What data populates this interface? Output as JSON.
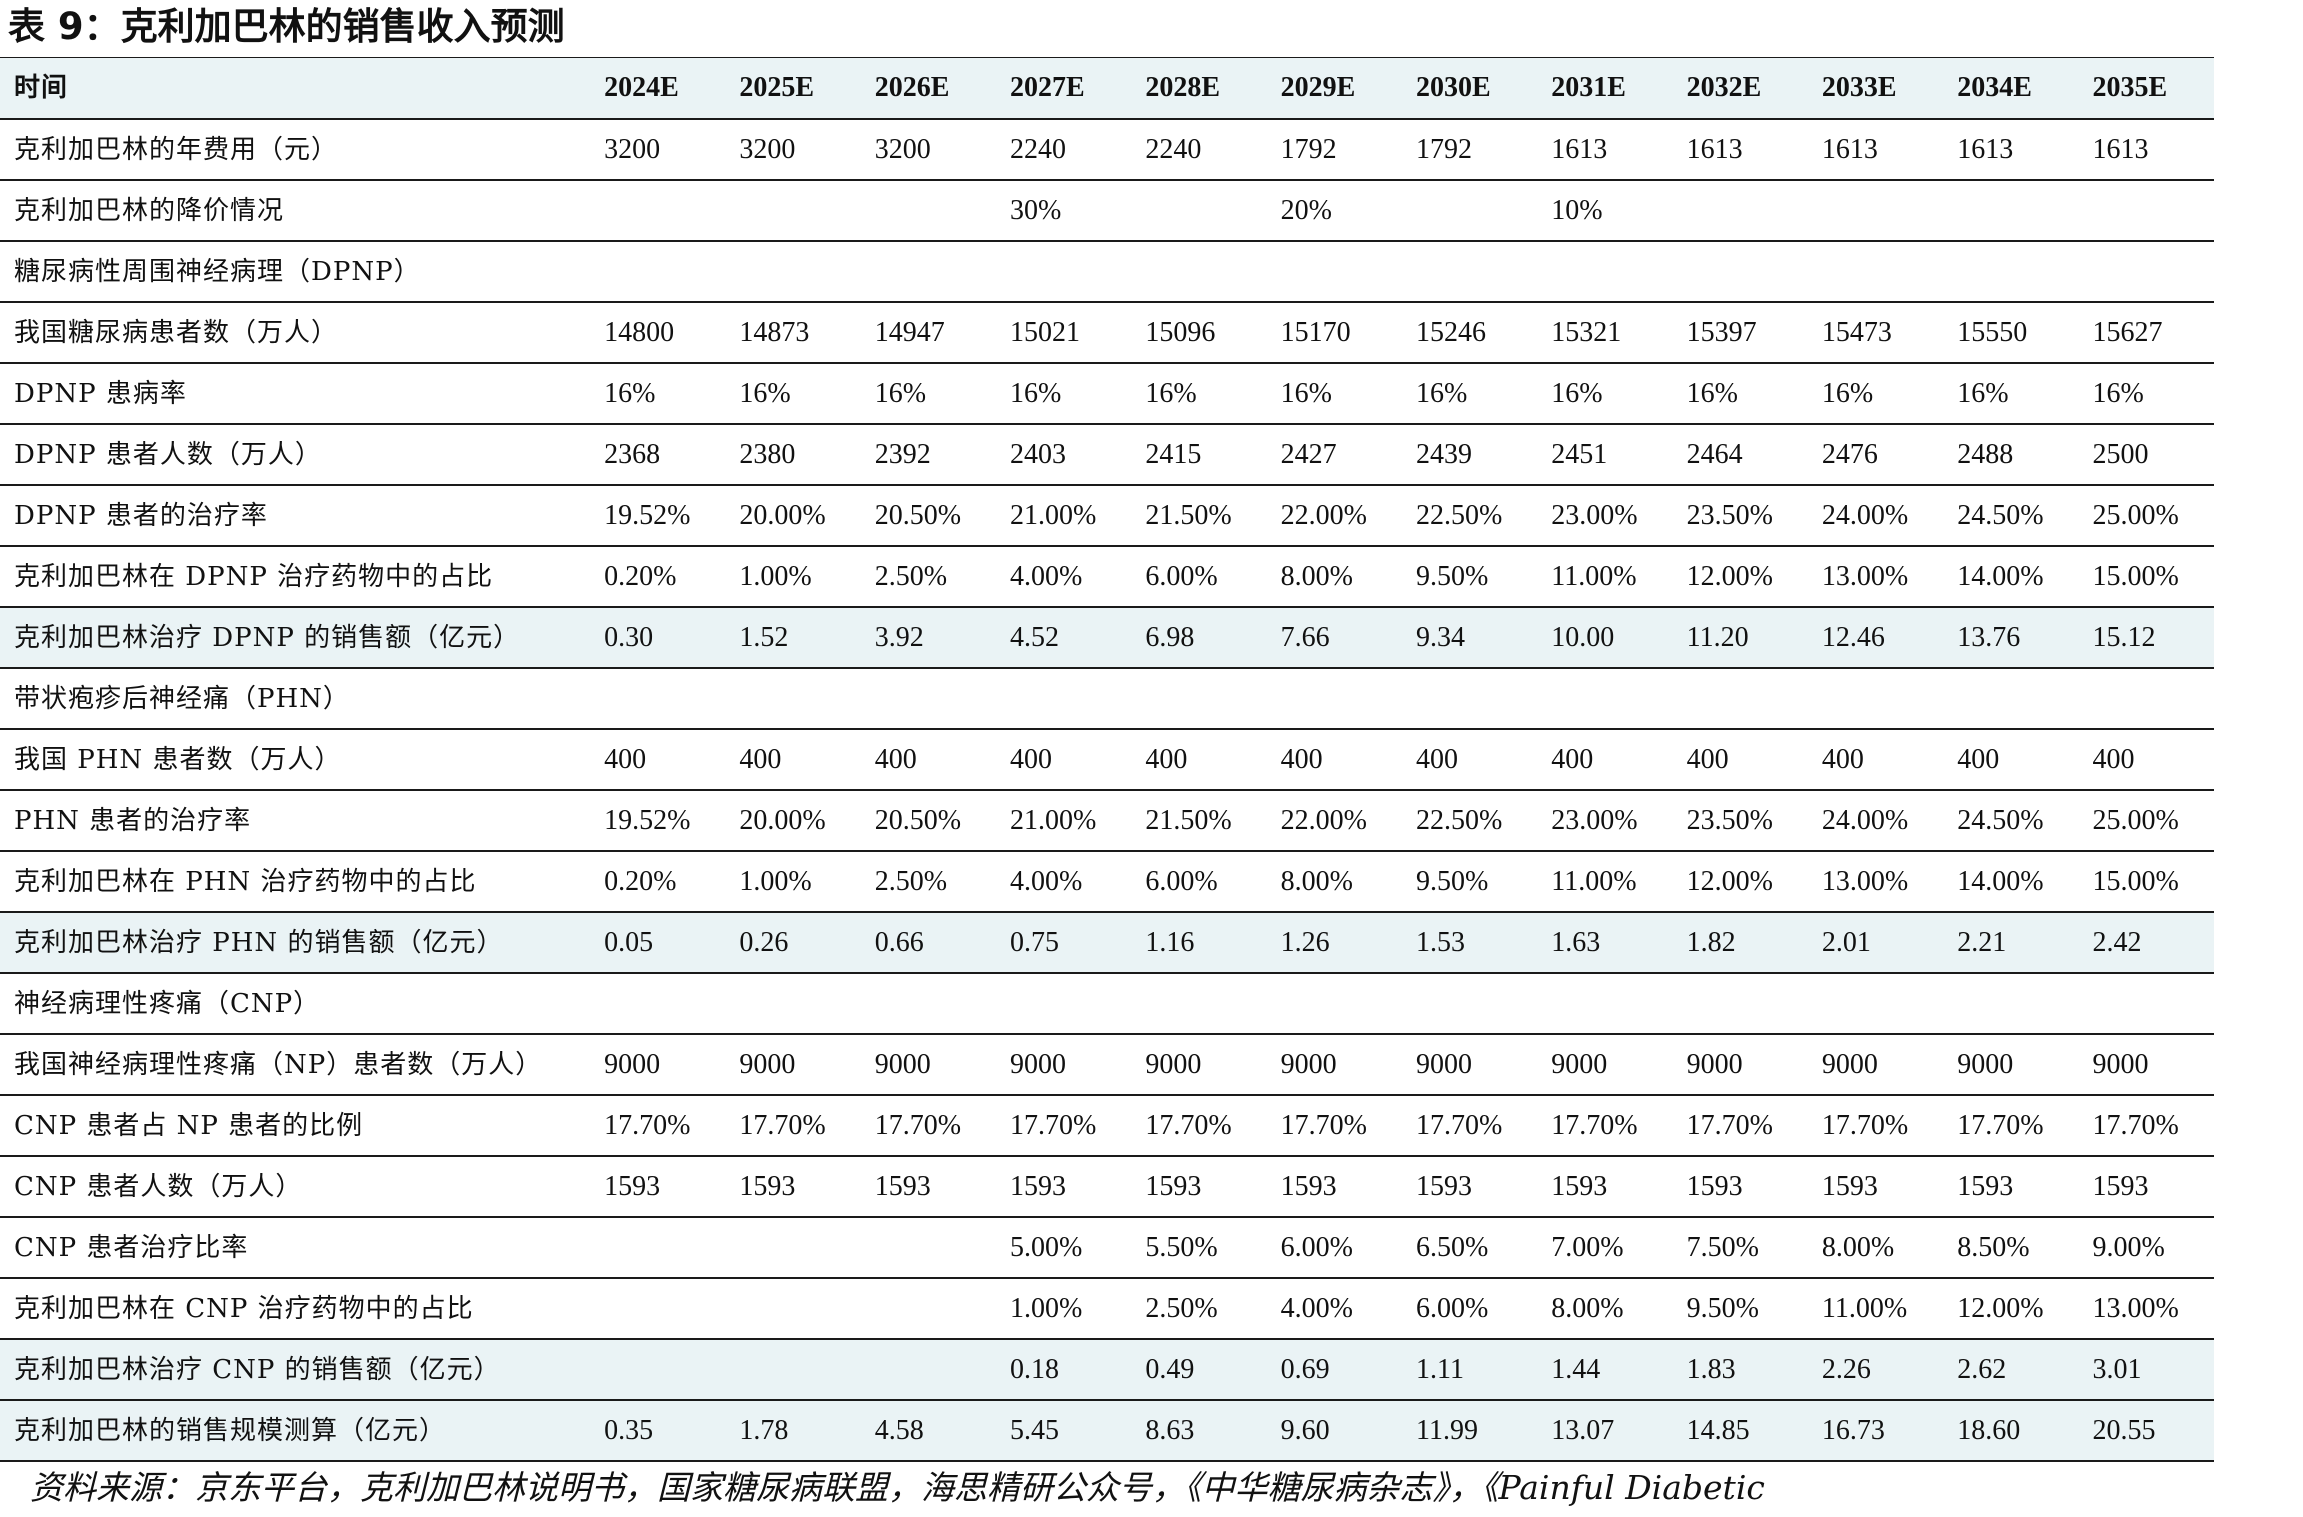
{
  "title": "表 9：克利加巴林的销售收入预测",
  "table": {
    "header": {
      "label": "时间",
      "years": [
        "2024E",
        "2025E",
        "2026E",
        "2027E",
        "2028E",
        "2029E",
        "2030E",
        "2031E",
        "2032E",
        "2033E",
        "2034E",
        "2035E"
      ]
    },
    "rows": [
      {
        "label": "克利加巴林的年费用（元）",
        "highlight": false,
        "values": [
          "3200",
          "3200",
          "3200",
          "2240",
          "2240",
          "1792",
          "1792",
          "1613",
          "1613",
          "1613",
          "1613",
          "1613"
        ]
      },
      {
        "label": "克利加巴林的降价情况",
        "highlight": false,
        "values": [
          "",
          "",
          "",
          "30%",
          "",
          "20%",
          "",
          "10%",
          "",
          "",
          "",
          ""
        ]
      },
      {
        "label": "糖尿病性周围神经病理（DPNP）",
        "highlight": false,
        "values": [
          "",
          "",
          "",
          "",
          "",
          "",
          "",
          "",
          "",
          "",
          "",
          ""
        ]
      },
      {
        "label": "我国糖尿病患者数（万人）",
        "highlight": false,
        "values": [
          "14800",
          "14873",
          "14947",
          "15021",
          "15096",
          "15170",
          "15246",
          "15321",
          "15397",
          "15473",
          "15550",
          "15627"
        ]
      },
      {
        "label": "DPNP 患病率",
        "highlight": false,
        "values": [
          "16%",
          "16%",
          "16%",
          "16%",
          "16%",
          "16%",
          "16%",
          "16%",
          "16%",
          "16%",
          "16%",
          "16%"
        ]
      },
      {
        "label": "DPNP 患者人数（万人）",
        "highlight": false,
        "values": [
          "2368",
          "2380",
          "2392",
          "2403",
          "2415",
          "2427",
          "2439",
          "2451",
          "2464",
          "2476",
          "2488",
          "2500"
        ]
      },
      {
        "label": "DPNP 患者的治疗率",
        "highlight": false,
        "values": [
          "19.52%",
          "20.00%",
          "20.50%",
          "21.00%",
          "21.50%",
          "22.00%",
          "22.50%",
          "23.00%",
          "23.50%",
          "24.00%",
          "24.50%",
          "25.00%"
        ]
      },
      {
        "label": "克利加巴林在 DPNP 治疗药物中的占比",
        "highlight": false,
        "values": [
          "0.20%",
          "1.00%",
          "2.50%",
          "4.00%",
          "6.00%",
          "8.00%",
          "9.50%",
          "11.00%",
          "12.00%",
          "13.00%",
          "14.00%",
          "15.00%"
        ]
      },
      {
        "label": "克利加巴林治疗 DPNP 的销售额（亿元）",
        "highlight": true,
        "values": [
          "0.30",
          "1.52",
          "3.92",
          "4.52",
          "6.98",
          "7.66",
          "9.34",
          "10.00",
          "11.20",
          "12.46",
          "13.76",
          "15.12"
        ]
      },
      {
        "label": "带状疱疹后神经痛（PHN）",
        "highlight": false,
        "values": [
          "",
          "",
          "",
          "",
          "",
          "",
          "",
          "",
          "",
          "",
          "",
          ""
        ]
      },
      {
        "label": "我国 PHN 患者数（万人）",
        "highlight": false,
        "values": [
          "400",
          "400",
          "400",
          "400",
          "400",
          "400",
          "400",
          "400",
          "400",
          "400",
          "400",
          "400"
        ]
      },
      {
        "label": "PHN 患者的治疗率",
        "highlight": false,
        "values": [
          "19.52%",
          "20.00%",
          "20.50%",
          "21.00%",
          "21.50%",
          "22.00%",
          "22.50%",
          "23.00%",
          "23.50%",
          "24.00%",
          "24.50%",
          "25.00%"
        ]
      },
      {
        "label": "克利加巴林在 PHN 治疗药物中的占比",
        "highlight": false,
        "values": [
          "0.20%",
          "1.00%",
          "2.50%",
          "4.00%",
          "6.00%",
          "8.00%",
          "9.50%",
          "11.00%",
          "12.00%",
          "13.00%",
          "14.00%",
          "15.00%"
        ]
      },
      {
        "label": "克利加巴林治疗 PHN 的销售额（亿元）",
        "highlight": true,
        "values": [
          "0.05",
          "0.26",
          "0.66",
          "0.75",
          "1.16",
          "1.26",
          "1.53",
          "1.63",
          "1.82",
          "2.01",
          "2.21",
          "2.42"
        ]
      },
      {
        "label": "神经病理性疼痛（CNP）",
        "highlight": false,
        "values": [
          "",
          "",
          "",
          "",
          "",
          "",
          "",
          "",
          "",
          "",
          "",
          ""
        ]
      },
      {
        "label": "我国神经病理性疼痛（NP）患者数（万人）",
        "highlight": false,
        "values": [
          "9000",
          "9000",
          "9000",
          "9000",
          "9000",
          "9000",
          "9000",
          "9000",
          "9000",
          "9000",
          "9000",
          "9000"
        ]
      },
      {
        "label": "CNP 患者占 NP 患者的比例",
        "highlight": false,
        "values": [
          "17.70%",
          "17.70%",
          "17.70%",
          "17.70%",
          "17.70%",
          "17.70%",
          "17.70%",
          "17.70%",
          "17.70%",
          "17.70%",
          "17.70%",
          "17.70%"
        ]
      },
      {
        "label": "CNP 患者人数（万人）",
        "highlight": false,
        "values": [
          "1593",
          "1593",
          "1593",
          "1593",
          "1593",
          "1593",
          "1593",
          "1593",
          "1593",
          "1593",
          "1593",
          "1593"
        ]
      },
      {
        "label": "CNP 患者治疗比率",
        "highlight": false,
        "values": [
          "",
          "",
          "",
          "5.00%",
          "5.50%",
          "6.00%",
          "6.50%",
          "7.00%",
          "7.50%",
          "8.00%",
          "8.50%",
          "9.00%"
        ]
      },
      {
        "label": "克利加巴林在 CNP 治疗药物中的占比",
        "highlight": false,
        "values": [
          "",
          "",
          "",
          "1.00%",
          "2.50%",
          "4.00%",
          "6.00%",
          "8.00%",
          "9.50%",
          "11.00%",
          "12.00%",
          "13.00%"
        ]
      },
      {
        "label": "克利加巴林治疗 CNP 的销售额（亿元）",
        "highlight": true,
        "values": [
          "",
          "",
          "",
          "0.18",
          "0.49",
          "0.69",
          "1.11",
          "1.44",
          "1.83",
          "2.26",
          "2.62",
          "3.01"
        ]
      },
      {
        "label": "克利加巴林的销售规模测算（亿元）",
        "highlight": true,
        "values": [
          "0.35",
          "1.78",
          "4.58",
          "5.45",
          "8.63",
          "9.60",
          "11.99",
          "13.07",
          "14.85",
          "16.73",
          "18.60",
          "20.55"
        ]
      }
    ]
  },
  "source": "资料来源：京东平台，克利加巴林说明书，国家糖尿病联盟，海思精研公众号，《中华糖尿病杂志》，《Painful Diabetic"
}
